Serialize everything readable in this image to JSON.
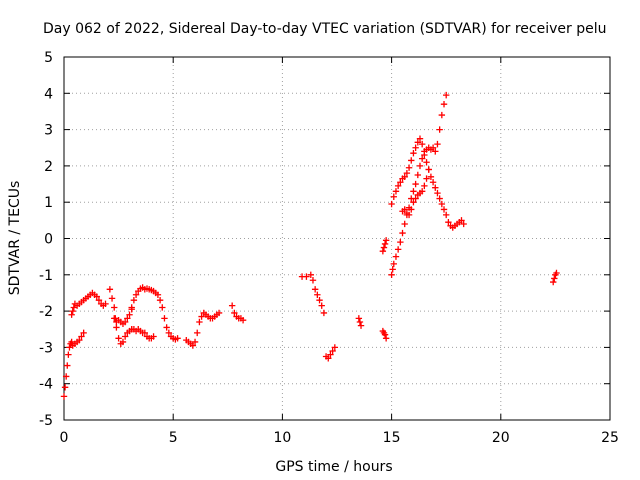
{
  "chart_data": {
    "type": "scatter",
    "title": "Day 062 of 2022, Sidereal Day-to-day VTEC variation (SDTVAR) for receiver pelu",
    "xlabel": "GPS time / hours",
    "ylabel": "SDTVAR / TECUs",
    "xlim": [
      0,
      25
    ],
    "ylim": [
      -5,
      5
    ],
    "xticks": [
      0,
      5,
      10,
      15,
      20,
      25
    ],
    "yticks": [
      -5,
      -4,
      -3,
      -2,
      -1,
      0,
      1,
      2,
      3,
      4,
      5
    ],
    "grid": true,
    "marker": "+",
    "series": [
      {
        "name": "pelu",
        "color": "#ff0000",
        "segments": [
          {
            "x": [
              0.0,
              0.05,
              0.1,
              0.15,
              0.2,
              0.25,
              0.3,
              0.35,
              0.4,
              0.5,
              0.6,
              0.7,
              0.8,
              0.9
            ],
            "y": [
              -4.35,
              -4.1,
              -3.8,
              -3.5,
              -3.2,
              -3.0,
              -2.9,
              -2.85,
              -2.95,
              -2.9,
              -2.85,
              -2.8,
              -2.7,
              -2.6
            ]
          },
          {
            "x": [
              0.35,
              0.4,
              0.45,
              0.5,
              0.6,
              0.7,
              0.8,
              0.9,
              1.0,
              1.1,
              1.2,
              1.3,
              1.4,
              1.5,
              1.6,
              1.7,
              1.8,
              1.9
            ],
            "y": [
              -2.1,
              -2.0,
              -1.9,
              -1.8,
              -1.85,
              -1.8,
              -1.75,
              -1.7,
              -1.65,
              -1.6,
              -1.55,
              -1.5,
              -1.55,
              -1.6,
              -1.7,
              -1.8,
              -1.85,
              -1.8
            ]
          },
          {
            "x": [
              2.1,
              2.2,
              2.3,
              2.35,
              2.4,
              2.5,
              2.6,
              2.7,
              2.8,
              2.9,
              3.0,
              3.1
            ],
            "y": [
              -1.4,
              -1.65,
              -1.9,
              -2.2,
              -2.45,
              -2.75,
              -2.9,
              -2.85,
              -2.7,
              -2.6,
              -2.55,
              -2.5
            ]
          },
          {
            "x": [
              2.3,
              2.4,
              2.5,
              2.6,
              2.7,
              2.8,
              2.9,
              3.0,
              3.1
            ],
            "y": [
              -2.2,
              -2.3,
              -2.25,
              -2.3,
              -2.35,
              -2.3,
              -2.2,
              -2.1,
              -1.95
            ]
          },
          {
            "x": [
              3.1,
              3.2,
              3.3,
              3.4,
              3.5,
              3.6,
              3.7,
              3.8,
              3.9,
              4.0,
              4.1
            ],
            "y": [
              -2.5,
              -2.5,
              -2.55,
              -2.5,
              -2.55,
              -2.6,
              -2.6,
              -2.7,
              -2.75,
              -2.75,
              -2.7
            ]
          },
          {
            "x": [
              3.1,
              3.2,
              3.3,
              3.4,
              3.5,
              3.6,
              3.7,
              3.8,
              3.9,
              4.0,
              4.1,
              4.2,
              4.3,
              4.4,
              4.5,
              4.6,
              4.7,
              4.8,
              4.9,
              5.0,
              5.1,
              5.2
            ],
            "y": [
              -1.9,
              -1.7,
              -1.55,
              -1.45,
              -1.38,
              -1.35,
              -1.4,
              -1.38,
              -1.4,
              -1.42,
              -1.45,
              -1.5,
              -1.55,
              -1.7,
              -1.9,
              -2.2,
              -2.45,
              -2.6,
              -2.7,
              -2.75,
              -2.78,
              -2.75
            ]
          },
          {
            "x": [
              5.6,
              5.7,
              5.8,
              5.9,
              6.0,
              6.1,
              6.2,
              6.3,
              6.4,
              6.5,
              6.6,
              6.7,
              6.8,
              6.9,
              7.0,
              7.1
            ],
            "y": [
              -2.8,
              -2.85,
              -2.9,
              -2.95,
              -2.85,
              -2.6,
              -2.3,
              -2.15,
              -2.05,
              -2.1,
              -2.15,
              -2.2,
              -2.2,
              -2.15,
              -2.1,
              -2.05
            ]
          },
          {
            "x": [
              7.7,
              7.8,
              7.9,
              8.0,
              8.1,
              8.2
            ],
            "y": [
              -1.85,
              -2.05,
              -2.15,
              -2.2,
              -2.2,
              -2.25
            ]
          },
          {
            "x": [
              10.9,
              11.1,
              11.3,
              11.4,
              11.5,
              11.6,
              11.7,
              11.8,
              11.9
            ],
            "y": [
              -1.05,
              -1.05,
              -1.0,
              -1.15,
              -1.4,
              -1.55,
              -1.7,
              -1.85,
              -2.05
            ]
          },
          {
            "x": [
              12.0,
              12.1,
              12.2,
              12.3,
              12.4
            ],
            "y": [
              -3.25,
              -3.3,
              -3.2,
              -3.1,
              -3.0
            ]
          },
          {
            "x": [
              13.5,
              13.55,
              13.6
            ],
            "y": [
              -2.2,
              -2.3,
              -2.4
            ]
          },
          {
            "x": [
              14.6,
              14.65,
              14.7,
              14.75
            ],
            "y": [
              -0.35,
              -0.25,
              -0.15,
              -0.05
            ]
          },
          {
            "x": [
              14.6,
              14.65,
              14.7,
              14.75
            ],
            "y": [
              -2.55,
              -2.6,
              -2.65,
              -2.75
            ]
          },
          {
            "x": [
              15.0,
              15.05,
              15.1,
              15.2,
              15.3,
              15.4,
              15.5,
              15.6,
              15.7,
              15.8,
              15.9,
              16.0,
              16.1,
              16.2,
              16.3,
              16.4,
              16.5,
              16.6,
              16.7,
              16.8,
              16.9,
              17.0,
              17.1,
              17.2,
              17.3,
              17.4,
              17.5
            ],
            "y": [
              -1.0,
              -0.85,
              -0.7,
              -0.5,
              -0.3,
              -0.1,
              0.15,
              0.4,
              0.65,
              0.85,
              1.1,
              1.3,
              1.5,
              1.75,
              2.0,
              2.2,
              2.4,
              2.45,
              2.5,
              2.45,
              2.5,
              2.4,
              2.6,
              3.0,
              3.4,
              3.7,
              3.95
            ]
          },
          {
            "x": [
              15.0,
              15.1,
              15.2,
              15.3,
              15.4,
              15.5,
              15.6,
              15.7,
              15.8,
              15.9,
              16.0,
              16.1,
              16.2,
              16.3,
              16.4,
              16.5
            ],
            "y": [
              0.95,
              1.15,
              1.3,
              1.45,
              1.55,
              1.65,
              1.7,
              1.8,
              1.95,
              2.15,
              2.35,
              2.5,
              2.65,
              2.75,
              2.6,
              2.3
            ]
          },
          {
            "x": [
              15.5,
              15.6,
              15.7,
              15.8,
              15.9,
              16.0,
              16.1,
              16.2,
              16.3,
              16.4,
              16.5,
              16.6,
              16.7
            ],
            "y": [
              0.75,
              0.8,
              0.7,
              0.65,
              0.8,
              1.0,
              1.1,
              1.2,
              1.25,
              1.3,
              1.45,
              1.65,
              1.9
            ]
          },
          {
            "x": [
              16.6,
              16.7,
              16.8,
              16.9,
              17.0,
              17.1,
              17.2,
              17.3,
              17.4,
              17.5,
              17.6,
              17.7,
              17.8,
              17.9,
              18.0,
              18.1,
              18.2,
              18.3
            ],
            "y": [
              2.1,
              1.9,
              1.7,
              1.55,
              1.4,
              1.25,
              1.1,
              0.95,
              0.8,
              0.65,
              0.45,
              0.35,
              0.3,
              0.35,
              0.4,
              0.45,
              0.5,
              0.4
            ]
          },
          {
            "x": [
              22.4,
              22.45,
              22.5,
              22.55
            ],
            "y": [
              -1.2,
              -1.1,
              -1.0,
              -0.95
            ]
          }
        ]
      }
    ]
  }
}
